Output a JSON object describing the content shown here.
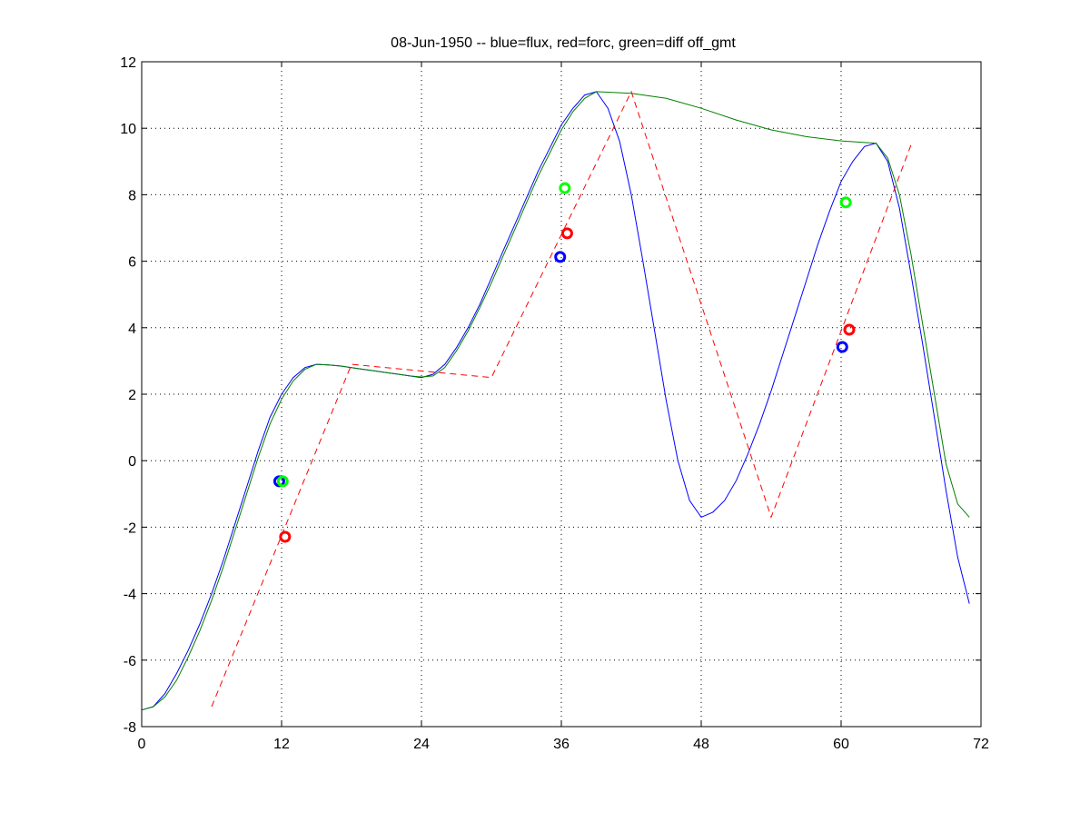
{
  "chart_data": {
    "type": "line",
    "title": "08-Jun-1950 -- blue=flux, red=forc, green=diff off_gmt",
    "xlabel": "",
    "ylabel": "",
    "xlim": [
      0,
      72
    ],
    "ylim": [
      -8,
      12
    ],
    "xticks": [
      0,
      12,
      24,
      36,
      48,
      60,
      72
    ],
    "xtick_labels": [
      "0",
      "12",
      "24",
      "36",
      "48",
      "60",
      "72"
    ],
    "yticks": [
      -8,
      -6,
      -4,
      -2,
      0,
      2,
      4,
      6,
      8,
      10,
      12
    ],
    "ytick_labels": [
      "-8",
      "-6",
      "-4",
      "-2",
      "0",
      "2",
      "4",
      "6",
      "8",
      "10",
      "12"
    ],
    "grid": true,
    "series": [
      {
        "name": "flux",
        "color": "#0000ff",
        "style": "solid",
        "x": [
          0,
          1,
          2,
          3,
          4,
          5,
          6,
          7,
          8,
          9,
          10,
          11,
          12,
          13,
          14,
          15,
          16,
          17,
          18,
          19,
          20,
          21,
          22,
          23,
          24,
          25,
          26,
          27,
          28,
          29,
          30,
          31,
          32,
          33,
          34,
          35,
          36,
          37,
          38,
          39,
          40,
          41,
          42,
          43,
          44,
          45,
          46,
          47,
          48,
          49,
          50,
          51,
          52,
          53,
          54,
          55,
          56,
          57,
          58,
          59,
          60,
          61,
          62,
          63,
          64,
          65,
          66,
          67,
          68,
          69,
          70,
          71
        ],
        "y": [
          -7.5,
          -7.4,
          -7.0,
          -6.4,
          -5.7,
          -4.9,
          -4.0,
          -3.0,
          -1.9,
          -0.8,
          0.3,
          1.3,
          2.0,
          2.5,
          2.8,
          2.9,
          2.88,
          2.85,
          2.8,
          2.75,
          2.7,
          2.65,
          2.6,
          2.55,
          2.5,
          2.6,
          2.9,
          3.4,
          4.0,
          4.7,
          5.5,
          6.3,
          7.1,
          7.9,
          8.7,
          9.4,
          10.1,
          10.6,
          11.0,
          11.1,
          10.6,
          9.6,
          8.0,
          6.0,
          3.9,
          1.8,
          0.0,
          -1.2,
          -1.7,
          -1.55,
          -1.2,
          -0.6,
          0.2,
          1.1,
          2.1,
          3.2,
          4.3,
          5.4,
          6.5,
          7.5,
          8.4,
          9.0,
          9.45,
          9.55,
          9.0,
          7.6,
          5.6,
          3.5,
          1.3,
          -0.9,
          -2.9,
          -4.3
        ]
      },
      {
        "name": "diff off_gmt",
        "color": "#008000",
        "style": "solid",
        "x": [
          0,
          1,
          2,
          3,
          4,
          5,
          6,
          7,
          8,
          9,
          10,
          11,
          12,
          13,
          14,
          15,
          16,
          17,
          18,
          19,
          20,
          21,
          22,
          23,
          24,
          25,
          26,
          27,
          28,
          29,
          30,
          31,
          32,
          33,
          34,
          35,
          36,
          37,
          38,
          39,
          42,
          45,
          48,
          51,
          54,
          57,
          60,
          63,
          64,
          65,
          66,
          67,
          68,
          69,
          70,
          71
        ],
        "y": [
          -7.5,
          -7.4,
          -7.1,
          -6.6,
          -5.9,
          -5.1,
          -4.2,
          -3.2,
          -2.1,
          -1.0,
          0.1,
          1.1,
          1.85,
          2.4,
          2.75,
          2.9,
          2.88,
          2.85,
          2.8,
          2.75,
          2.7,
          2.65,
          2.6,
          2.55,
          2.52,
          2.55,
          2.8,
          3.3,
          3.9,
          4.6,
          5.35,
          6.15,
          6.95,
          7.75,
          8.55,
          9.25,
          9.95,
          10.5,
          10.9,
          11.1,
          11.05,
          10.9,
          10.6,
          10.25,
          9.95,
          9.75,
          9.62,
          9.55,
          9.1,
          8.0,
          6.2,
          4.1,
          2.0,
          -0.1,
          -1.3,
          -1.7
        ]
      },
      {
        "name": "forc",
        "color": "#ff0000",
        "style": "dashed",
        "x": [
          6,
          18,
          30,
          42,
          54,
          66
        ],
        "y": [
          -7.4,
          2.9,
          2.5,
          11.1,
          -1.7,
          9.5
        ]
      }
    ],
    "markers": [
      {
        "series": "flux",
        "color": "#0000ff",
        "x": [
          11.8,
          35.9,
          60.1
        ],
        "y": [
          -0.62,
          6.13,
          3.42
        ]
      },
      {
        "series": "diff",
        "color": "#00ff00",
        "x": [
          12.1,
          36.3,
          60.4
        ],
        "y": [
          -0.62,
          8.2,
          7.77
        ]
      },
      {
        "series": "forc",
        "color": "#ff0000",
        "x": [
          12.3,
          36.5,
          60.7
        ],
        "y": [
          -2.29,
          6.84,
          3.94
        ]
      }
    ]
  }
}
